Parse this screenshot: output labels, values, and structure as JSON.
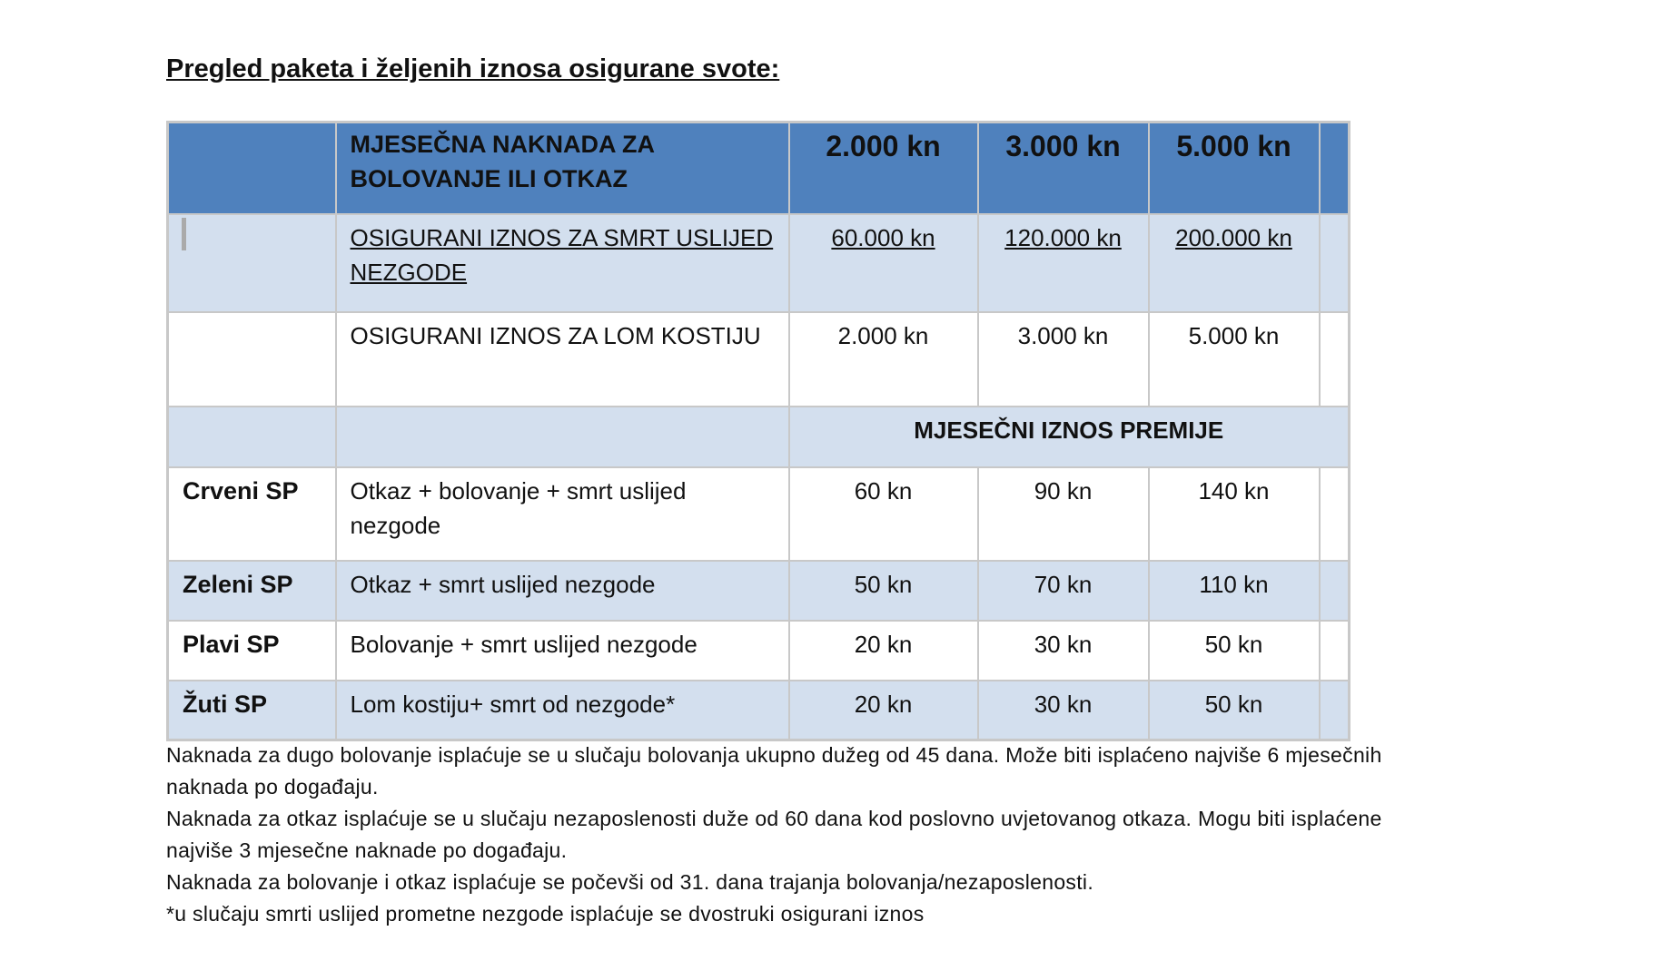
{
  "title": "Pregled paketa i željenih iznosa osigurane svote:",
  "colors": {
    "header_bg": "#4f81bd",
    "band_bg": "#d3dfee",
    "border": "#c8c8c8"
  },
  "header": {
    "label": " MJESEČNA NAKNADA ZA BOLOVANJE ILI OTKAZ",
    "amounts": [
      "2.000 kn",
      "3.000 kn",
      "5.000 kn"
    ]
  },
  "coverage_rows": [
    {
      "label": "OSIGURANI IZNOS ZA SMRT USLIJED NEZGODE",
      "values": [
        "60.000 kn",
        "120.000 kn",
        "200.000 kn"
      ]
    },
    {
      "label": "OSIGURANI IZNOS ZA LOM KOSTIJU",
      "values": [
        "2.000 kn",
        "3.000 kn",
        "5.000 kn"
      ]
    }
  ],
  "premium_heading": "MJESEČNI IZNOS PREMIJE",
  "packages": [
    {
      "name": "Crveni SP",
      "description": "Otkaz + bolovanje + smrt uslijed nezgode",
      "values": [
        "60 kn",
        "90 kn",
        "140 kn"
      ]
    },
    {
      "name": "Zeleni SP",
      "description": "Otkaz + smrt uslijed nezgode",
      "values": [
        "50 kn",
        "70 kn",
        "110 kn"
      ]
    },
    {
      "name": "Plavi SP",
      "description": "Bolovanje + smrt uslijed nezgode",
      "values": [
        "20 kn",
        "30 kn",
        "50 kn"
      ]
    },
    {
      "name": "Žuti SP",
      "description": "Lom kostiju+ smrt od nezgode*",
      "values": [
        "20 kn",
        "30 kn",
        "50 kn"
      ]
    }
  ],
  "notes": [
    "Naknada za dugo bolovanje isplaćuje se u slučaju bolovanja ukupno dužeg od 45 dana. Može biti isplaćeno najviše 6 mjesečnih",
    "naknada po događaju.",
    "Naknada za otkaz isplaćuje se u slučaju nezaposlenosti duže od 60 dana kod poslovno uvjetovanog otkaza. Mogu biti isplaćene",
    "najviše 3 mjesečne naknade po događaju.",
    "Naknada za bolovanje i otkaz isplaćuje se počevši od 31. dana trajanja bolovanja/nezaposlenosti.",
    "*u slučaju smrti uslijed prometne nezgode isplaćuje se dvostruki osigurani iznos"
  ]
}
